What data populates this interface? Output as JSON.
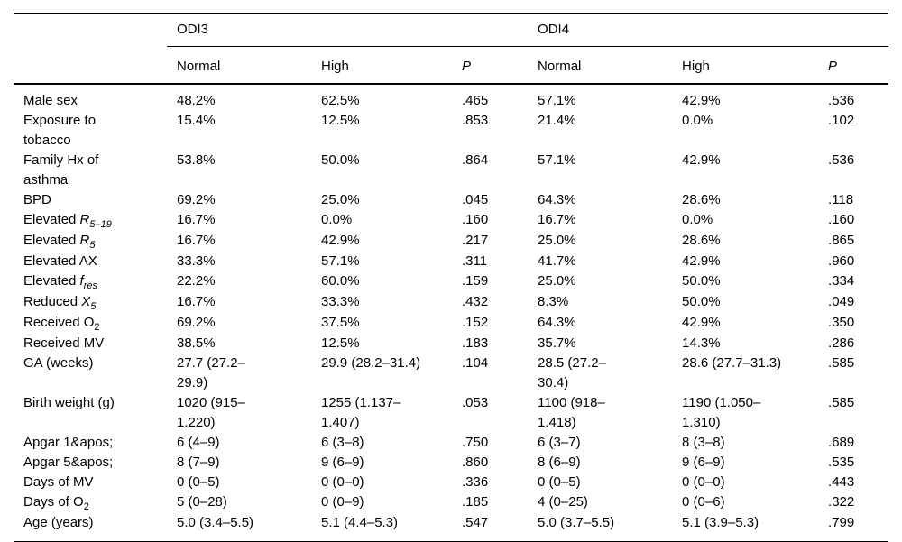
{
  "table": {
    "group_headers": [
      {
        "label": "ODI3",
        "span": 3
      },
      {
        "label": "ODI4",
        "span": 3
      }
    ],
    "column_headers": [
      "",
      "Normal",
      "High",
      "P",
      "Normal",
      "High",
      "P"
    ],
    "rows": [
      {
        "label": [
          {
            "t": "Male sex"
          }
        ],
        "values": [
          "48.2%",
          "62.5%",
          ".465",
          "57.1%",
          "42.9%",
          ".536"
        ]
      },
      {
        "label": [
          {
            "t": "Exposure to\ntobacco"
          }
        ],
        "values": [
          "15.4%",
          "12.5%",
          ".853",
          "21.4%",
          "0.0%",
          ".102"
        ]
      },
      {
        "label": [
          {
            "t": "Family Hx of\nasthma"
          }
        ],
        "values": [
          "53.8%",
          "50.0%",
          ".864",
          "57.1%",
          "42.9%",
          ".536"
        ]
      },
      {
        "label": [
          {
            "t": "BPD"
          }
        ],
        "values": [
          "69.2%",
          "25.0%",
          ".045",
          "64.3%",
          "28.6%",
          ".118"
        ]
      },
      {
        "label": [
          {
            "t": "Elevated "
          },
          {
            "t": "R",
            "italic": true
          },
          {
            "t": "5–19",
            "italic": true,
            "sub": true
          }
        ],
        "values": [
          "16.7%",
          "0.0%",
          ".160",
          "16.7%",
          "0.0%",
          ".160"
        ]
      },
      {
        "label": [
          {
            "t": "Elevated "
          },
          {
            "t": "R",
            "italic": true
          },
          {
            "t": "5",
            "italic": true,
            "sub": true
          }
        ],
        "values": [
          "16.7%",
          "42.9%",
          ".217",
          "25.0%",
          "28.6%",
          ".865"
        ]
      },
      {
        "label": [
          {
            "t": "Elevated AX"
          }
        ],
        "values": [
          "33.3%",
          "57.1%",
          ".311",
          "41.7%",
          "42.9%",
          ".960"
        ]
      },
      {
        "label": [
          {
            "t": "Elevated "
          },
          {
            "t": "f",
            "italic": true
          },
          {
            "t": "res",
            "italic": true,
            "sub": true
          }
        ],
        "values": [
          "22.2%",
          "60.0%",
          ".159",
          "25.0%",
          "50.0%",
          ".334"
        ]
      },
      {
        "label": [
          {
            "t": "Reduced "
          },
          {
            "t": "X",
            "italic": true
          },
          {
            "t": "5",
            "italic": true,
            "sub": true
          }
        ],
        "values": [
          "16.7%",
          "33.3%",
          ".432",
          "8.3%",
          "50.0%",
          ".049"
        ]
      },
      {
        "label": [
          {
            "t": "Received O"
          },
          {
            "t": "2",
            "sub": true
          }
        ],
        "values": [
          "69.2%",
          "37.5%",
          ".152",
          "64.3%",
          "42.9%",
          ".350"
        ]
      },
      {
        "label": [
          {
            "t": "Received MV"
          }
        ],
        "values": [
          "38.5%",
          "12.5%",
          ".183",
          "35.7%",
          "14.3%",
          ".286"
        ]
      },
      {
        "label": [
          {
            "t": "GA (weeks)"
          }
        ],
        "values": [
          "27.7 (27.2–\n29.9)",
          "29.9 (28.2–31.4)",
          ".104",
          "28.5 (27.2–\n30.4)",
          "28.6 (27.7–31.3)",
          ".585"
        ]
      },
      {
        "label": [
          {
            "t": "Birth weight (g)"
          }
        ],
        "values": [
          "1020 (915–\n1.220)",
          "1255 (1.137–\n1.407)",
          ".053",
          "1100 (918–\n1.418)",
          "1190 (1.050–\n1.310)",
          ".585"
        ]
      },
      {
        "label": [
          {
            "t": "Apgar 1&apos;"
          }
        ],
        "values": [
          "6 (4–9)",
          "6 (3–8)",
          ".750",
          "6 (3–7)",
          "8 (3–8)",
          ".689"
        ]
      },
      {
        "label": [
          {
            "t": "Apgar 5&apos;"
          }
        ],
        "values": [
          "8 (7–9)",
          "9 (6–9)",
          ".860",
          "8 (6–9)",
          "9 (6–9)",
          ".535"
        ]
      },
      {
        "label": [
          {
            "t": "Days of MV"
          }
        ],
        "values": [
          "0 (0–5)",
          "0 (0–0)",
          ".336",
          "0 (0–5)",
          "0 (0–0)",
          ".443"
        ]
      },
      {
        "label": [
          {
            "t": "Days of O"
          },
          {
            "t": "2",
            "sub": true
          }
        ],
        "values": [
          "5 (0–28)",
          "0 (0–9)",
          ".185",
          "4 (0–25)",
          "0 (0–6)",
          ".322"
        ]
      },
      {
        "label": [
          {
            "t": "Age (years)"
          }
        ],
        "values": [
          "5.0 (3.4–5.5)",
          "5.1 (4.4–5.3)",
          ".547",
          "5.0 (3.7–5.5)",
          "5.1 (3.9–5.3)",
          ".799"
        ]
      }
    ]
  },
  "colors": {
    "text": "#000000",
    "background": "#ffffff",
    "rule": "#000000"
  }
}
